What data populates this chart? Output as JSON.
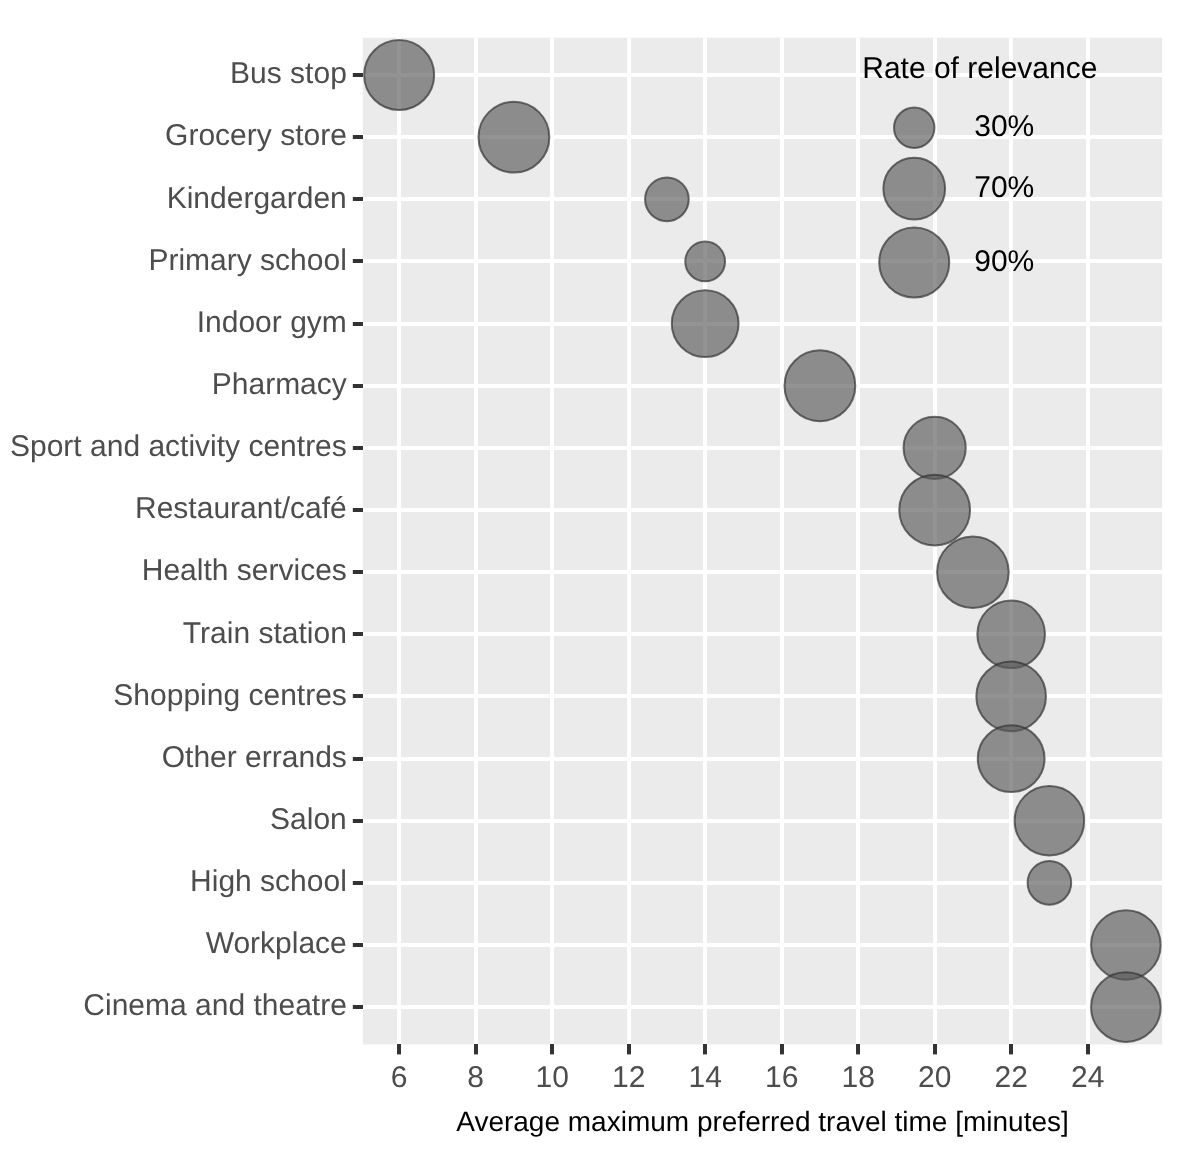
{
  "chart_data": {
    "type": "bubble",
    "xlabel": "Average maximum preferred travel time [minutes]",
    "legend_title": "Rate of relevance",
    "categories": [
      "Bus stop",
      "Grocery store",
      "Kindergarden",
      "Primary school",
      "Indoor gym",
      "Pharmacy",
      "Sport and activity centres",
      "Restaurant/café",
      "Health services",
      "Train station",
      "Shopping centres",
      "Other errands",
      "Salon",
      "High school",
      "Workplace",
      "Cinema and theatre"
    ],
    "values": [
      6,
      9,
      13,
      14,
      14,
      17,
      20,
      20,
      21,
      22,
      22,
      22,
      23,
      23,
      25,
      25
    ],
    "sizes": [
      90,
      92,
      35,
      29,
      82,
      92,
      71,
      92,
      94,
      84,
      89,
      82,
      89,
      35,
      89,
      89
    ],
    "size_legend": [
      {
        "value": 30,
        "label": "30%"
      },
      {
        "value": 70,
        "label": "70%"
      },
      {
        "value": 90,
        "label": "90%"
      }
    ],
    "orientation": "horizontal",
    "color": "#595959",
    "xlim": [
      5.05,
      25.95
    ],
    "xticks": [
      6,
      8,
      10,
      12,
      14,
      16,
      18,
      20,
      22,
      24
    ],
    "grid": true
  }
}
